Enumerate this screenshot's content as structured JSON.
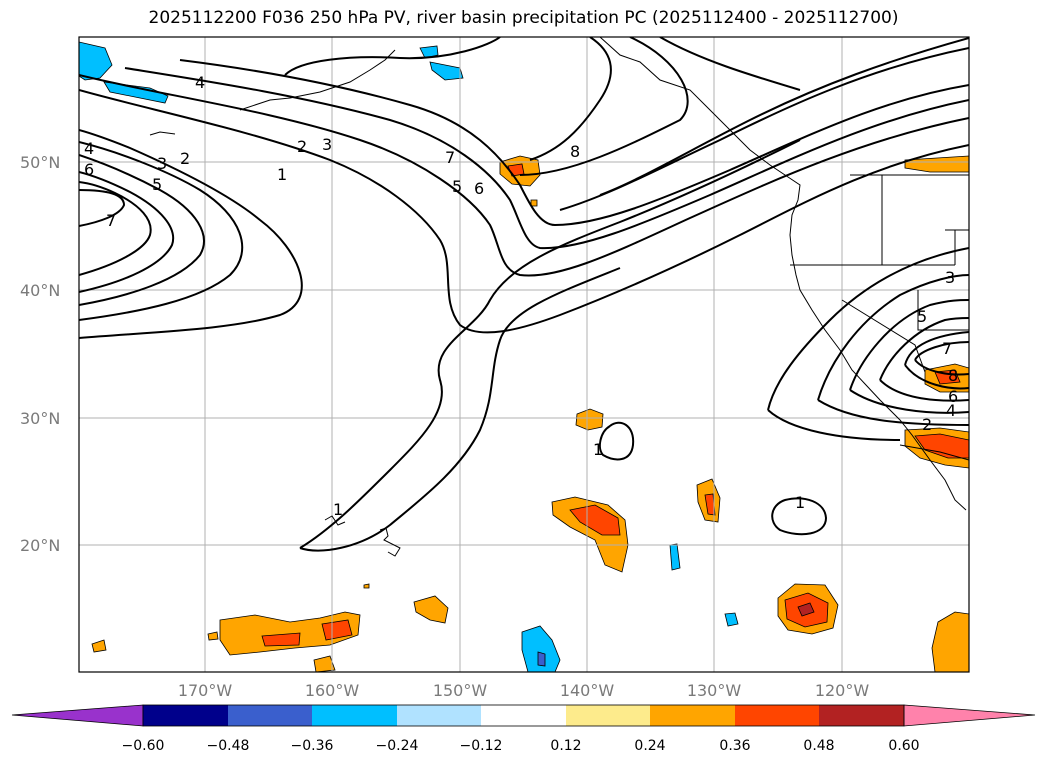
{
  "title": "2025112200 F036 250 hPa PV, river basin precipitation PC (2025112400 - 2025112700)",
  "map": {
    "lat_labels": [
      "50°N",
      "40°N",
      "30°N",
      "20°N"
    ],
    "lon_labels": [
      "170°W",
      "160°W",
      "150°W",
      "140°W",
      "130°W",
      "120°W"
    ],
    "grid": true
  },
  "contour_labels": [
    "4",
    "6",
    "7",
    "3",
    "2",
    "5",
    "1",
    "4",
    "2",
    "3",
    "7",
    "5",
    "6",
    "8",
    "1",
    "1",
    "1",
    "3",
    "5",
    "7",
    "8",
    "6",
    "4",
    "2"
  ],
  "colorbar": {
    "labels": [
      "−0.60",
      "−0.48",
      "−0.36",
      "−0.24",
      "−0.12",
      "0.12",
      "0.24",
      "0.36",
      "0.48",
      "0.60"
    ],
    "colors": [
      "#9932cc",
      "#00008b",
      "#3a5fcd",
      "#00bfff",
      "#b0e2ff",
      "#ffffff",
      "#fdeb8c",
      "#ffa500",
      "#ff4500",
      "#b22222",
      "#ff82ab",
      "#ff82ab"
    ]
  }
}
